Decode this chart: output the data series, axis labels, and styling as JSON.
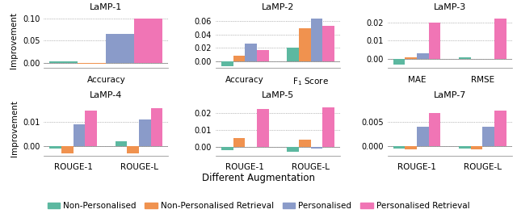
{
  "subplots": [
    {
      "title": "LaMP-1",
      "groups": [
        "Accuracy"
      ],
      "values": {
        "Non-Personalised": [
          0.003
        ],
        "Non-Personalised Retrieval": [
          -0.003
        ],
        "Personalised": [
          0.065
        ],
        "Personalised Retrieval": [
          0.1
        ]
      },
      "ylim": [
        -0.012,
        0.112
      ],
      "yticks": [
        0.0,
        0.05,
        0.1
      ],
      "row": 0,
      "col": 0
    },
    {
      "title": "LaMP-2",
      "groups": [
        "Accuracy",
        "F$_1$ Score"
      ],
      "values": {
        "Non-Personalised": [
          -0.007,
          0.02
        ],
        "Non-Personalised Retrieval": [
          0.008,
          0.05
        ],
        "Personalised": [
          0.027,
          0.064
        ],
        "Personalised Retrieval": [
          0.017,
          0.053
        ]
      },
      "ylim": [
        -0.01,
        0.072
      ],
      "yticks": [
        0.0,
        0.02,
        0.04,
        0.06
      ],
      "row": 0,
      "col": 1
    },
    {
      "title": "LaMP-3",
      "groups": [
        "MAE",
        "RMSE"
      ],
      "values": {
        "Non-Personalised": [
          -0.003,
          0.001
        ],
        "Non-Personalised Retrieval": [
          0.001,
          0.0
        ],
        "Personalised": [
          0.003,
          0.0
        ],
        "Personalised Retrieval": [
          0.02,
          0.022
        ]
      },
      "ylim": [
        -0.005,
        0.025
      ],
      "yticks": [
        0.0,
        0.01,
        0.02
      ],
      "row": 0,
      "col": 2
    },
    {
      "title": "LaMP-4",
      "groups": [
        "ROUGE-1",
        "ROUGE-L"
      ],
      "values": {
        "Non-Personalised": [
          -0.001,
          0.002
        ],
        "Non-Personalised Retrieval": [
          -0.003,
          -0.003
        ],
        "Personalised": [
          0.009,
          0.011
        ],
        "Personalised Retrieval": [
          0.015,
          0.016
        ]
      },
      "ylim": [
        -0.004,
        0.019
      ],
      "yticks": [
        0.0,
        0.01
      ],
      "row": 1,
      "col": 0
    },
    {
      "title": "LaMP-5",
      "groups": [
        "ROUGE-1",
        "ROUGE-L"
      ],
      "values": {
        "Non-Personalised": [
          -0.002,
          -0.003
        ],
        "Non-Personalised Retrieval": [
          0.005,
          0.004
        ],
        "Personalised": [
          0.0,
          -0.001
        ],
        "Personalised Retrieval": [
          0.022,
          0.023
        ]
      },
      "ylim": [
        -0.005,
        0.027
      ],
      "yticks": [
        0.0,
        0.01,
        0.02
      ],
      "row": 1,
      "col": 1
    },
    {
      "title": "LaMP-7",
      "groups": [
        "ROUGE-1",
        "ROUGE-L"
      ],
      "values": {
        "Non-Personalised": [
          -0.0005,
          -0.0005
        ],
        "Non-Personalised Retrieval": [
          -0.0008,
          -0.0008
        ],
        "Personalised": [
          0.004,
          0.004
        ],
        "Personalised Retrieval": [
          0.007,
          0.0075
        ]
      },
      "ylim": [
        -0.002,
        0.0095
      ],
      "yticks": [
        0.0,
        0.005
      ],
      "row": 1,
      "col": 2
    }
  ],
  "colors": {
    "Non-Personalised": "#5cb8a0",
    "Non-Personalised Retrieval": "#f0924f",
    "Personalised": "#8a9bc9",
    "Personalised Retrieval": "#f075b5"
  },
  "xlabel": "Different Augmentation",
  "ylabel": "Improvement",
  "bar_width": 0.18,
  "figsize": [
    6.4,
    2.75
  ],
  "dpi": 100
}
